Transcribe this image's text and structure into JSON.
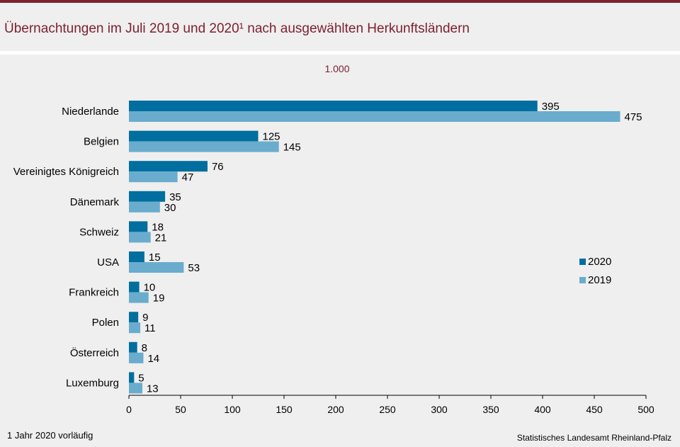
{
  "header": {
    "title": "Übernachtungen im Juli 2019 und 2020¹ nach ausgewählten Herkunftsländern",
    "unit": "1.000"
  },
  "chart_data": {
    "type": "bar",
    "orientation": "horizontal",
    "categories": [
      "Niederlande",
      "Belgien",
      "Vereinigtes Königreich",
      "Dänemark",
      "Schweiz",
      "USA",
      "Frankreich",
      "Polen",
      "Österreich",
      "Luxemburg"
    ],
    "series": [
      {
        "name": "2020",
        "color": "#006e9e",
        "values": [
          395,
          125,
          76,
          35,
          18,
          15,
          10,
          9,
          8,
          5
        ]
      },
      {
        "name": "2019",
        "color": "#6aaccd",
        "values": [
          475,
          145,
          47,
          30,
          21,
          53,
          19,
          11,
          14,
          13
        ]
      }
    ],
    "x_ticks": [
      "0",
      "50",
      "100",
      "150",
      "200",
      "250",
      "300",
      "350",
      "400",
      "450",
      "500"
    ],
    "xlim": [
      0,
      500
    ],
    "grid": false,
    "legend_position": "right"
  },
  "footer": {
    "footnote": "1 Jahr 2020 vorläufig",
    "source": "Statistisches Landesamt Rheinland-Pfalz"
  }
}
